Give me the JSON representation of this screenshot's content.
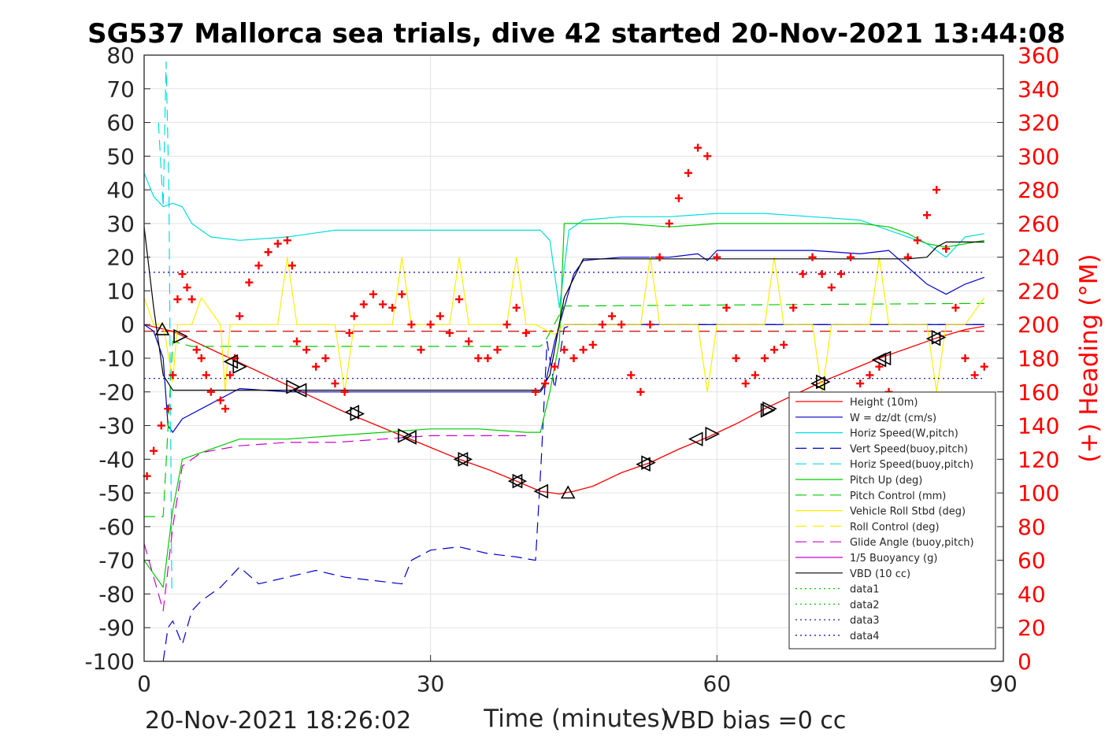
{
  "chart_data": {
    "type": "line",
    "title": "SG537 Mallorca sea trials, dive 42 started 20-Nov-2021 13:44:08",
    "xlabel": "Time (minutes)",
    "ylabel": "",
    "ylabel_right": "(+) Heading (°M)",
    "xlim": [
      0,
      90
    ],
    "ylim": [
      -100,
      80
    ],
    "ylim_right": [
      0,
      360
    ],
    "x_ticks": [
      "0",
      "30",
      "60",
      "90"
    ],
    "y_ticks": [
      "80",
      "70",
      "60",
      "50",
      "40",
      "30",
      "20",
      "10",
      "0",
      "-10",
      "-20",
      "-30",
      "-40",
      "-50",
      "-60",
      "-70",
      "-80",
      "-90",
      "-100"
    ],
    "y_right_ticks": [
      "360",
      "340",
      "320",
      "300",
      "280",
      "260",
      "240",
      "220",
      "200",
      "180",
      "160",
      "140",
      "120",
      "100",
      "80",
      "60",
      "40",
      "20",
      "0"
    ],
    "grid": true,
    "legend_position": "bottom-right",
    "series": [
      {
        "name": "Height (10m)",
        "color": "#ff0000",
        "style": "solid",
        "x": [
          0,
          3,
          6,
          9,
          12,
          15,
          18,
          21,
          24,
          27,
          30,
          33,
          36,
          39,
          41.5,
          43.5,
          45,
          47,
          50,
          53,
          56,
          59,
          62,
          65,
          68,
          71,
          74,
          77,
          80,
          83,
          86,
          88
        ],
        "y": [
          0,
          -2,
          -6,
          -10,
          -14,
          -18,
          -22,
          -26,
          -29.5,
          -33,
          -36.5,
          -40,
          -43,
          -46.5,
          -49.5,
          -50.3,
          -49.5,
          -48,
          -44,
          -41,
          -37,
          -33.5,
          -29.5,
          -25,
          -21,
          -17,
          -13.5,
          -10,
          -7,
          -4,
          -1.5,
          -0.5
        ]
      },
      {
        "name": "W = dz/dt (cm/s)",
        "color": "#0000cc",
        "style": "solid",
        "x": [
          0,
          1,
          2,
          2.5,
          3,
          4,
          6,
          8,
          10,
          15,
          20,
          25,
          30,
          35,
          40,
          41.5,
          42,
          43,
          44,
          45,
          46,
          50,
          55,
          58,
          59,
          60,
          65,
          70,
          75,
          78,
          80,
          82,
          84,
          86,
          88
        ],
        "y": [
          0,
          -2,
          -10,
          -30,
          -32,
          -28,
          -25,
          -22,
          -19,
          -20,
          -20,
          -20,
          -20,
          -20,
          -20,
          -20,
          -18,
          -5,
          5,
          15,
          19,
          20,
          20,
          21,
          19,
          22,
          22,
          22,
          21,
          22,
          17,
          12,
          9,
          12,
          14
        ]
      },
      {
        "name": "Horiz Speed(W,pitch)",
        "color": "#00dddd",
        "style": "solid",
        "x": [
          0,
          1,
          2,
          3,
          4,
          5,
          7,
          10,
          15,
          20,
          25,
          30,
          35,
          40,
          41.5,
          42.5,
          43.5,
          44.5,
          46,
          50,
          55,
          60,
          65,
          70,
          75,
          78,
          80,
          82,
          84,
          86,
          88
        ],
        "y": [
          45,
          38,
          35,
          36,
          35,
          30,
          26,
          25,
          26,
          28,
          28,
          28,
          28,
          28,
          28,
          25,
          5,
          28,
          31,
          32,
          32,
          33,
          33,
          32,
          31,
          28,
          26,
          24,
          20,
          26,
          27
        ]
      },
      {
        "name": "Vert Speed(buoy,pitch)",
        "color": "#0000cc",
        "style": "dashed",
        "x": [
          2,
          2.5,
          3,
          4,
          5,
          6,
          8,
          10,
          12,
          15,
          18,
          21,
          24,
          27,
          28,
          30,
          33,
          36,
          39,
          41,
          41.6,
          42.2,
          43,
          44,
          45,
          50,
          55,
          60,
          65,
          70,
          75,
          80,
          85,
          88
        ],
        "y": [
          -100,
          -90,
          -88,
          -95,
          -85,
          -82,
          -78,
          -72,
          -77,
          -75,
          -73,
          -75,
          -76,
          -77,
          -70,
          -67,
          -66,
          -68,
          -69,
          -70,
          -40,
          -5,
          -19,
          -1,
          0,
          0,
          0,
          0,
          0,
          0,
          0,
          0,
          0,
          0
        ]
      },
      {
        "name": "Horiz Speed(buoy,pitch)",
        "color": "#00dddd",
        "style": "dashed",
        "x": [
          1.5,
          2,
          2.3,
          2.6,
          2.9
        ],
        "y": [
          60,
          35,
          78,
          40,
          -80
        ]
      },
      {
        "name": "Pitch Up (deg)",
        "color": "#00cc00",
        "style": "solid",
        "x": [
          0,
          2,
          3,
          4,
          6,
          8,
          10,
          15,
          20,
          25,
          30,
          35,
          40,
          41.5,
          42.5,
          43.5,
          44,
          46,
          50,
          55,
          60,
          65,
          70,
          75,
          78,
          80,
          82,
          84,
          86,
          88
        ],
        "y": [
          -70,
          -78,
          -55,
          -40,
          -38,
          -36,
          -34,
          -34,
          -33,
          -32,
          -31,
          -31,
          -32,
          -32,
          -20,
          -5,
          30,
          30,
          30,
          29,
          30,
          30,
          30,
          30,
          29,
          27,
          24,
          23,
          24,
          25
        ]
      },
      {
        "name": "Pitch Control (mm)",
        "color": "#00cc00",
        "style": "dashed",
        "x": [
          0,
          2,
          3,
          5,
          41.5,
          42,
          44,
          88
        ],
        "y": [
          -57,
          -57,
          -5,
          -6.5,
          -6.5,
          -5,
          5.5,
          6.3
        ]
      },
      {
        "name": "Vehicle Roll Stbd (deg)",
        "color": "#ffee00",
        "style": "solid",
        "x": [
          0,
          1,
          2,
          3,
          3.5,
          5,
          6,
          8,
          8.5,
          9,
          10,
          14,
          15,
          16,
          20,
          21,
          22,
          26,
          27,
          28,
          32,
          33,
          34,
          38,
          39,
          40,
          41,
          43,
          44,
          50,
          52,
          53,
          54,
          56,
          58,
          59,
          60,
          62,
          65,
          66,
          67,
          70,
          71,
          72,
          76,
          77,
          78,
          82,
          83,
          84,
          86,
          88
        ],
        "y": [
          8,
          0,
          0,
          -17,
          0,
          0,
          8,
          0,
          -20,
          0,
          0,
          0,
          20,
          0,
          0,
          -20,
          0,
          0,
          20,
          0,
          0,
          20,
          0,
          0,
          20,
          0,
          0,
          -3,
          0,
          0,
          0,
          20,
          0,
          0,
          0,
          -20,
          0,
          0,
          0,
          20,
          0,
          0,
          -20,
          0,
          0,
          20,
          0,
          0,
          -20,
          0,
          0,
          8
        ]
      },
      {
        "name": "Roll Control (deg)",
        "color": "#ffee00",
        "style": "dashed",
        "x": [],
        "y": []
      },
      {
        "name": "Glide Angle (buoy,pitch)",
        "color": "#cc00cc",
        "style": "dashed",
        "x": [
          0,
          2,
          3,
          4,
          6,
          10,
          15,
          20,
          25,
          30,
          35,
          40
        ],
        "y": [
          -65,
          -85,
          -60,
          -42,
          -38,
          -36,
          -35,
          -35,
          -34,
          -33,
          -33,
          -33
        ]
      },
      {
        "name": "1/5 Buoyancy (g)",
        "color": "#cc00cc",
        "style": "solid",
        "x": [],
        "y": []
      },
      {
        "name": "VBD (10 cc)",
        "color": "#000000",
        "style": "solid",
        "x": [
          0,
          1,
          2,
          3,
          41.5,
          42.5,
          44,
          46,
          47,
          60,
          70,
          80,
          82,
          83,
          84,
          88
        ],
        "y": [
          29,
          5,
          -15,
          -19.5,
          -19.5,
          -15,
          8,
          19.5,
          19.5,
          19.5,
          19.5,
          19.5,
          20,
          23,
          24.5,
          24.5
        ]
      },
      {
        "name": "data1",
        "color": "#00cc00",
        "style": "dotted",
        "x": [],
        "y": []
      },
      {
        "name": "data2",
        "color": "#00cc00",
        "style": "dotted",
        "x": [],
        "y": []
      },
      {
        "name": "data3",
        "color": "#0000cc",
        "style": "dotted",
        "x": [
          0,
          88
        ],
        "y": [
          -16,
          -16
        ]
      },
      {
        "name": "data4",
        "color": "#0000cc",
        "style": "dotted",
        "x": [
          0,
          88
        ],
        "y": [
          15.5,
          15.5
        ]
      }
    ],
    "reference_lines": [
      {
        "color": "#cc0000",
        "style": "dashed",
        "y": -2
      },
      {
        "color": "#0000cc",
        "style": "solid",
        "y": 0,
        "x": [
          44,
          88
        ]
      }
    ],
    "heading_markers": {
      "name": "(+) Heading (°M)",
      "color": "#ff0000",
      "marker": "+",
      "axis": "right",
      "x": [
        0.3,
        1,
        1.8,
        2.5,
        3,
        3.5,
        4,
        4.5,
        5,
        5.5,
        6,
        6.5,
        7,
        8,
        8.5,
        9,
        9.5,
        10,
        11,
        12,
        13,
        14,
        15,
        15.5,
        16,
        17,
        18,
        19,
        20,
        21,
        21.5,
        22,
        23,
        24,
        25,
        26,
        27,
        28,
        29,
        30,
        31,
        32,
        33,
        34,
        35,
        36,
        37,
        38,
        39,
        40,
        41,
        42,
        43,
        44,
        45,
        46,
        47,
        48,
        49,
        50,
        51,
        52,
        53,
        54,
        55,
        56,
        57,
        58,
        59,
        60,
        61,
        62,
        63,
        64,
        65,
        66,
        67,
        68,
        69,
        70,
        71,
        72,
        73,
        74,
        75,
        76,
        77,
        78,
        79,
        80,
        81,
        82,
        83,
        84,
        85,
        86,
        87,
        88
      ],
      "y": [
        110,
        125,
        140,
        150,
        170,
        215,
        230,
        222,
        215,
        185,
        180,
        170,
        160,
        155,
        150,
        170,
        180,
        205,
        225,
        235,
        243,
        248,
        250,
        235,
        190,
        185,
        175,
        180,
        165,
        160,
        195,
        205,
        212,
        218,
        212,
        210,
        218,
        200,
        185,
        200,
        205,
        195,
        215,
        190,
        180,
        180,
        185,
        200,
        210,
        195,
        160,
        165,
        175,
        185,
        180,
        185,
        188,
        200,
        205,
        200,
        170,
        160,
        200,
        240,
        260,
        275,
        290,
        305,
        300,
        240,
        210,
        180,
        165,
        170,
        180,
        185,
        188,
        210,
        230,
        240,
        230,
        222,
        230,
        240,
        165,
        170,
        175,
        160,
        150,
        240,
        250,
        265,
        280,
        245,
        210,
        180,
        170,
        175
      ]
    },
    "depth_triangles": {
      "color": "#000000",
      "x": [
        1.9,
        3.8,
        9.1,
        10.0,
        15.6,
        16.3,
        21.8,
        22.3,
        27.3,
        27.8,
        33.2,
        33.6,
        38.9,
        39.3,
        41.6,
        44.4,
        52.3,
        52.8,
        57.8,
        59.5,
        65.3,
        65.5,
        70.6,
        71.1,
        77.0,
        77.5,
        82.7,
        83.2
      ],
      "y": [
        -1.5,
        -3.5,
        -11,
        -12.5,
        -18.5,
        -19.5,
        -26,
        -26.5,
        -33,
        -33.5,
        -40,
        -40,
        -46.5,
        -46.5,
        -49.5,
        -50,
        -41.5,
        -41,
        -34,
        -32.5,
        -25.5,
        -25,
        -17.5,
        -17,
        -10.5,
        -10,
        -4.2,
        -3.8
      ],
      "dir": [
        "up",
        "right",
        "left",
        "right",
        "right",
        "left",
        "left",
        "right",
        "right",
        "left",
        "left",
        "right",
        "left",
        "right",
        "left",
        "up",
        "left",
        "right",
        "left",
        "right",
        "right",
        "right",
        "left",
        "right",
        "left",
        "left",
        "left",
        "right"
      ]
    }
  },
  "footer": {
    "timestamp": "20-Nov-2021 18:26:02",
    "vbd_bias": "VBD bias =0 cc"
  }
}
